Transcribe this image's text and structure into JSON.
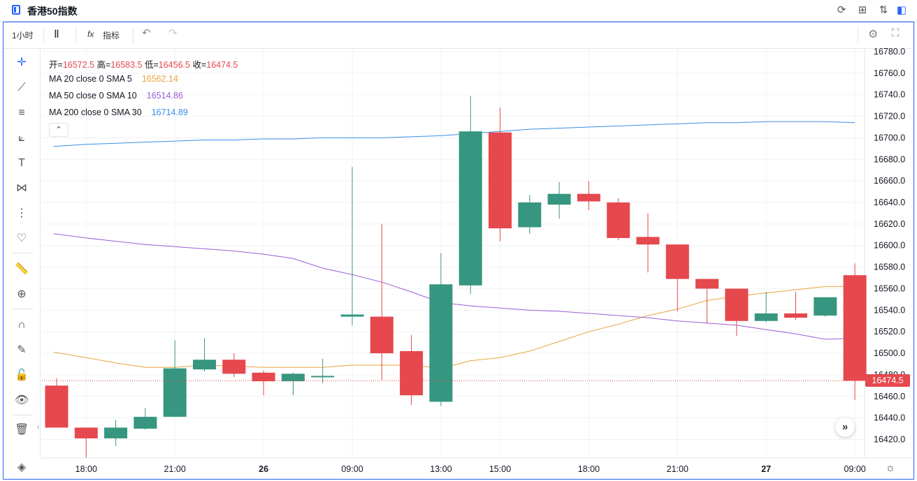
{
  "window": {
    "title": "香港50指数",
    "icons": [
      "reload-icon",
      "grid-icon",
      "sort-icon",
      "panel-icon"
    ]
  },
  "toolbar": {
    "interval": "1小时",
    "indicators_label": "指标"
  },
  "legend": {
    "open_label": "开=",
    "open": "16572.5",
    "high_label": "高=",
    "high": "16583.5",
    "low_label": "低=",
    "low": "16456.5",
    "close_label": "收=",
    "close": "16474.5",
    "ma": [
      {
        "label": "MA 20 close 0 SMA 5",
        "value": "16562.14",
        "color": "#e8a33d"
      },
      {
        "label": "MA 50 close 0 SMA 10",
        "value": "16514.86",
        "color": "#9c5dd6"
      },
      {
        "label": "MA 200 close 0 SMA 30",
        "value": "16714.89",
        "color": "#3a8ee6"
      }
    ]
  },
  "price_tag": "16474.5",
  "colors": {
    "up": "#36967f",
    "down": "#e5484d",
    "accent": "#2962ff"
  },
  "chart_data": {
    "type": "candlestick",
    "ylim": [
      16402,
      16785
    ],
    "y_ticks": [
      "16780.0",
      "16760.0",
      "16740.0",
      "16720.0",
      "16700.0",
      "16680.0",
      "16660.0",
      "16640.0",
      "16620.0",
      "16600.0",
      "16580.0",
      "16560.0",
      "16540.0",
      "16520.0",
      "16500.0",
      "16480.0",
      "16460.0",
      "16440.0",
      "16420.0"
    ],
    "x_ticks": [
      {
        "label": "18:00",
        "i": 1,
        "bold": false
      },
      {
        "label": "21:00",
        "i": 4,
        "bold": false
      },
      {
        "label": "26",
        "i": 7,
        "bold": true
      },
      {
        "label": "09:00",
        "i": 10,
        "bold": false
      },
      {
        "label": "13:00",
        "i": 13,
        "bold": false
      },
      {
        "label": "15:00",
        "i": 15,
        "bold": false
      },
      {
        "label": "18:00",
        "i": 18,
        "bold": false
      },
      {
        "label": "21:00",
        "i": 21,
        "bold": false
      },
      {
        "label": "27",
        "i": 24,
        "bold": true
      },
      {
        "label": "09:00",
        "i": 27,
        "bold": false
      }
    ],
    "candles": [
      {
        "o": 16470,
        "h": 16477,
        "l": 16431,
        "c": 16431
      },
      {
        "o": 16431,
        "h": 16431,
        "l": 16403,
        "c": 16421
      },
      {
        "o": 16421,
        "h": 16438,
        "l": 16414,
        "c": 16431
      },
      {
        "o": 16430,
        "h": 16449,
        "l": 16429,
        "c": 16441
      },
      {
        "o": 16441,
        "h": 16512,
        "l": 16441,
        "c": 16486
      },
      {
        "o": 16485,
        "h": 16514,
        "l": 16483,
        "c": 16494
      },
      {
        "o": 16494,
        "h": 16500,
        "l": 16478,
        "c": 16481
      },
      {
        "o": 16482,
        "h": 16484,
        "l": 16461,
        "c": 16474
      },
      {
        "o": 16474,
        "h": 16482,
        "l": 16461,
        "c": 16481
      },
      {
        "o": 16478,
        "h": 16495,
        "l": 16472,
        "c": 16479
      },
      {
        "o": 16534,
        "h": 16673,
        "l": 16526,
        "c": 16536
      },
      {
        "o": 16534,
        "h": 16620,
        "l": 16475,
        "c": 16500
      },
      {
        "o": 16502,
        "h": 16517,
        "l": 16452,
        "c": 16461
      },
      {
        "o": 16455,
        "h": 16593,
        "l": 16451,
        "c": 16564
      },
      {
        "o": 16563,
        "h": 16739,
        "l": 16555,
        "c": 16706
      },
      {
        "o": 16705,
        "h": 16728,
        "l": 16604,
        "c": 16616
      },
      {
        "o": 16617,
        "h": 16647,
        "l": 16611,
        "c": 16640
      },
      {
        "o": 16638,
        "h": 16659,
        "l": 16625,
        "c": 16648
      },
      {
        "o": 16648,
        "h": 16660,
        "l": 16633,
        "c": 16641
      },
      {
        "o": 16640,
        "h": 16644,
        "l": 16605,
        "c": 16607
      },
      {
        "o": 16608,
        "h": 16630,
        "l": 16575,
        "c": 16601
      },
      {
        "o": 16601,
        "h": 16601,
        "l": 16539,
        "c": 16569
      },
      {
        "o": 16569,
        "h": 16569,
        "l": 16528,
        "c": 16560
      },
      {
        "o": 16560,
        "h": 16560,
        "l": 16516,
        "c": 16530
      },
      {
        "o": 16530,
        "h": 16557,
        "l": 16529,
        "c": 16537
      },
      {
        "o": 16537,
        "h": 16557,
        "l": 16531,
        "c": 16533
      },
      {
        "o": 16535,
        "h": 16552,
        "l": 16534,
        "c": 16552
      },
      {
        "o": 16572.5,
        "h": 16583.5,
        "l": 16456.5,
        "c": 16474.5
      }
    ],
    "ma_lines": [
      {
        "label": "MA 20 close 0 SMA 5",
        "points": [
          [
            -0.1,
            16501
          ],
          [
            1,
            16496
          ],
          [
            2,
            16491
          ],
          [
            3,
            16487
          ],
          [
            4,
            16487
          ],
          [
            5,
            16489
          ],
          [
            6,
            16488
          ],
          [
            7,
            16487
          ],
          [
            8,
            16487
          ],
          [
            9,
            16487
          ],
          [
            10,
            16489
          ],
          [
            11,
            16489
          ],
          [
            12,
            16489
          ],
          [
            13,
            16486
          ],
          [
            14,
            16493
          ],
          [
            15,
            16496
          ],
          [
            16,
            16502
          ],
          [
            17,
            16511
          ],
          [
            18,
            16520
          ],
          [
            19,
            16527
          ],
          [
            20,
            16535
          ],
          [
            21,
            16541
          ],
          [
            22,
            16549
          ],
          [
            23,
            16553
          ],
          [
            24,
            16556
          ],
          [
            25,
            16559
          ],
          [
            26,
            16562
          ],
          [
            27,
            16562
          ]
        ]
      },
      {
        "label": "MA 50 close 0 SMA 10",
        "points": [
          [
            -0.1,
            16611
          ],
          [
            1,
            16607
          ],
          [
            2,
            16604
          ],
          [
            3,
            16601
          ],
          [
            4,
            16599
          ],
          [
            5,
            16597
          ],
          [
            6,
            16595
          ],
          [
            7,
            16592
          ],
          [
            8,
            16588
          ],
          [
            9,
            16579
          ],
          [
            10,
            16573
          ],
          [
            11,
            16566
          ],
          [
            12,
            16557
          ],
          [
            13,
            16547
          ],
          [
            14,
            16544
          ],
          [
            15,
            16542
          ],
          [
            16,
            16540
          ],
          [
            17,
            16539
          ],
          [
            18,
            16537
          ],
          [
            19,
            16535
          ],
          [
            20,
            16533
          ],
          [
            21,
            16530
          ],
          [
            22,
            16528
          ],
          [
            23,
            16526
          ],
          [
            24,
            16522
          ],
          [
            25,
            16518
          ],
          [
            26,
            16513
          ],
          [
            27,
            16514
          ]
        ]
      },
      {
        "label": "MA 200 close 0 SMA 30",
        "points": [
          [
            -0.1,
            16692
          ],
          [
            1,
            16694
          ],
          [
            2,
            16695
          ],
          [
            3,
            16696
          ],
          [
            4,
            16697
          ],
          [
            5,
            16698
          ],
          [
            6,
            16698
          ],
          [
            7,
            16699
          ],
          [
            8,
            16699
          ],
          [
            9,
            16700
          ],
          [
            10,
            16700
          ],
          [
            11,
            16700
          ],
          [
            12,
            16701
          ],
          [
            13,
            16702
          ],
          [
            14,
            16704
          ],
          [
            15,
            16706
          ],
          [
            16,
            16708
          ],
          [
            17,
            16709
          ],
          [
            18,
            16710
          ],
          [
            19,
            16711
          ],
          [
            20,
            16712
          ],
          [
            21,
            16713
          ],
          [
            22,
            16714
          ],
          [
            23,
            16714
          ],
          [
            24,
            16715
          ],
          [
            25,
            16715
          ],
          [
            26,
            16715
          ],
          [
            27,
            16714
          ]
        ]
      }
    ],
    "last_price": 16474.5
  }
}
